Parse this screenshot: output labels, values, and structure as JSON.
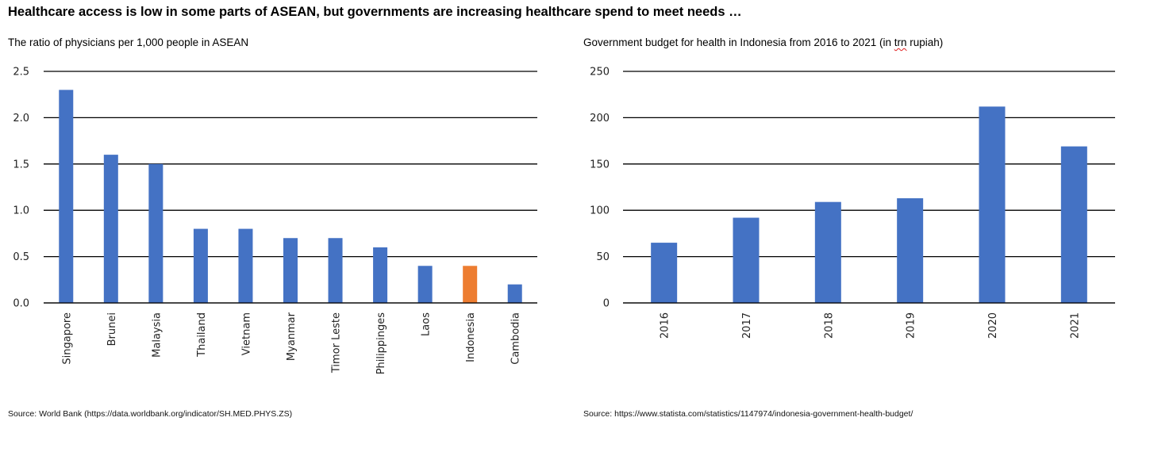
{
  "headline": "Healthcare access is low in some parts of ASEAN, but governments are increasing healthcare spend to meet needs …",
  "colors": {
    "bar": "#4472c4",
    "highlight": "#ed7d31",
    "grid": "#000000"
  },
  "chart_data": [
    {
      "type": "bar",
      "title": "The ratio of physicians per 1,000 people in ASEAN",
      "xlabel": "",
      "ylabel": "",
      "categories": [
        "Singapore",
        "Brunei",
        "Malaysia",
        "Thailand",
        "Vietnam",
        "Myanmar",
        "Timor Leste",
        "Philippinges",
        "Laos",
        "Indonesia",
        "Cambodia"
      ],
      "values": [
        2.3,
        1.6,
        1.5,
        0.8,
        0.8,
        0.7,
        0.7,
        0.6,
        0.4,
        0.4,
        0.2
      ],
      "highlight": "Indonesia",
      "ylim": [
        0,
        2.5
      ],
      "yticks": [
        "0.0",
        "0.5",
        "1.0",
        "1.5",
        "2.0",
        "2.5"
      ],
      "grid": true,
      "legend": "none",
      "source": "Source: World Bank (https://data.worldbank.org/indicator/SH.MED.PHYS.ZS)"
    },
    {
      "type": "bar",
      "title_main": "Government budget for health in Indonesia from 2016 to 2021 (in ",
      "title_squiggle": "trn",
      "title_end": " rupiah)",
      "xlabel": "",
      "ylabel": "",
      "categories": [
        "2016",
        "2017",
        "2018",
        "2019",
        "2020",
        "2021"
      ],
      "values": [
        65,
        92,
        109,
        113,
        212,
        169
      ],
      "ylim": [
        0,
        250
      ],
      "yticks": [
        "0",
        "50",
        "100",
        "150",
        "200",
        "250"
      ],
      "grid": true,
      "legend": "none",
      "source": "Source: https://www.statista.com/statistics/1147974/indonesia-government-health-budget/"
    }
  ]
}
